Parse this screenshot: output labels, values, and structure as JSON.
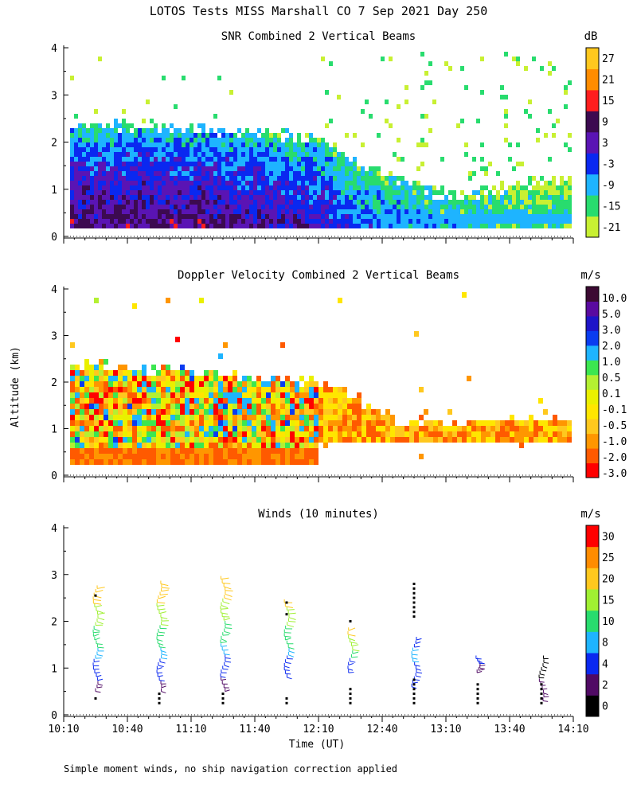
{
  "figure": {
    "title": "LOTOS Tests MISS Marshall CO   7 Sep 2021 Day 250",
    "ylabel": "Altitude (km)",
    "xlabel": "Time (UT)",
    "footnote": "Simple moment winds, no ship navigation correction applied"
  },
  "colors": {
    "snr_palette": [
      "#c8f032",
      "#28dc6e",
      "#1eb4ff",
      "#0a28f0",
      "#5a14b4",
      "#3c0a50",
      "#ff1e1e",
      "#ff8c00",
      "#ffc81e"
    ],
    "vel_palette": [
      "#ff0000",
      "#ff5a00",
      "#ff9600",
      "#ffc81e",
      "#ffe600",
      "#eaf000",
      "#b4f032",
      "#3ce650",
      "#1eb4ff",
      "#0a3cf0",
      "#1e14c8",
      "#5a0aa0",
      "#3c0a32"
    ],
    "wind_palette": [
      "#000000",
      "#500a64",
      "#0a28f0",
      "#1eb4ff",
      "#28dc6e",
      "#a0f032",
      "#ffc81e",
      "#ff8c00",
      "#ff0000"
    ]
  },
  "chart_data": [
    {
      "type": "heatmap",
      "title": "SNR Combined 2 Vertical Beams",
      "unit": "dB",
      "x_ticks": [
        "10:10",
        "10:40",
        "11:10",
        "11:40",
        "12:10",
        "12:40",
        "13:10",
        "13:40",
        "14:10"
      ],
      "xlim_minutes": [
        0,
        240
      ],
      "ylim": [
        0,
        4
      ],
      "y_ticks": [
        "0",
        "1",
        "2",
        "3",
        "4"
      ],
      "colorbar_ticks": [
        "-21",
        "-15",
        "-9",
        "-3",
        "3",
        "9",
        "15",
        "21",
        "27"
      ],
      "colorbar_levels": [
        -21,
        -15,
        -9,
        -3,
        3,
        9,
        15,
        21,
        27
      ],
      "description_profile": [
        {
          "t": 0,
          "top_km": 2.6,
          "max_db": 9
        },
        {
          "t": 60,
          "top_km": 2.5,
          "max_db": 9
        },
        {
          "t": 120,
          "top_km": 2.3,
          "max_db": 3
        },
        {
          "t": 135,
          "top_km": 1.8,
          "max_db": -3
        },
        {
          "t": 180,
          "top_km": 1.0,
          "max_db": -9
        },
        {
          "t": 240,
          "top_km": 1.5,
          "max_db": -15
        }
      ]
    },
    {
      "type": "heatmap",
      "title": "Doppler Velocity Combined 2 Vertical Beams",
      "unit": "m/s",
      "x_ticks": [
        "10:10",
        "10:40",
        "11:10",
        "11:40",
        "12:10",
        "12:40",
        "13:10",
        "13:40",
        "14:10"
      ],
      "xlim_minutes": [
        0,
        240
      ],
      "ylim": [
        0,
        4
      ],
      "y_ticks": [
        "0",
        "1",
        "2",
        "3",
        "4"
      ],
      "colorbar_ticks": [
        "-3.0",
        "-2.0",
        "-1.0",
        "-0.5",
        "-0.1",
        "0.1",
        "0.5",
        "1.0",
        "2.0",
        "3.0",
        "5.0",
        "10.0"
      ],
      "colorbar_levels": [
        -3.0,
        -2.0,
        -1.0,
        -0.5,
        -0.1,
        0.1,
        0.5,
        1.0,
        2.0,
        3.0,
        5.0,
        10.0
      ],
      "description_profile": [
        {
          "t": 0,
          "top_km": 2.6
        },
        {
          "t": 120,
          "top_km": 2.2
        },
        {
          "t": 160,
          "top_km": 1.3
        },
        {
          "t": 240,
          "top_km": 1.5
        }
      ]
    },
    {
      "type": "scatter",
      "title": "Winds (10 minutes)",
      "unit": "m/s",
      "x_ticks": [
        "10:10",
        "10:40",
        "11:10",
        "11:40",
        "12:10",
        "12:40",
        "13:10",
        "13:40",
        "14:10"
      ],
      "xlim_minutes": [
        0,
        240
      ],
      "ylim": [
        0,
        4
      ],
      "y_ticks": [
        "0",
        "1",
        "2",
        "3",
        "4"
      ],
      "colorbar_ticks": [
        "0",
        "2",
        "4",
        "8",
        "10",
        "15",
        "20",
        "25",
        "30"
      ],
      "colorbar_levels": [
        0,
        2,
        4,
        8,
        10,
        15,
        20,
        25,
        30
      ],
      "profiles": [
        {
          "t": 15,
          "alt_min": 0.5,
          "alt_max": 2.7,
          "speeds": [
            3,
            4,
            6,
            8,
            10,
            12,
            15,
            18,
            20,
            20
          ]
        },
        {
          "t": 45,
          "alt_min": 0.5,
          "alt_max": 2.8,
          "speeds": [
            3,
            4,
            6,
            8,
            10,
            12,
            15,
            18,
            20,
            20
          ]
        },
        {
          "t": 75,
          "alt_min": 0.5,
          "alt_max": 2.9,
          "speeds": [
            3,
            4,
            6,
            8,
            10,
            12,
            15,
            18,
            20,
            22
          ]
        },
        {
          "t": 105,
          "alt_min": 0.8,
          "alt_max": 2.4,
          "speeds": [
            4,
            6,
            8,
            10,
            12,
            15,
            18,
            20
          ]
        },
        {
          "t": 135,
          "alt_min": 0.9,
          "alt_max": 1.8,
          "speeds": [
            4,
            6,
            10,
            15,
            18,
            20
          ]
        },
        {
          "t": 165,
          "alt_min": 0.6,
          "alt_max": 1.6,
          "speeds": [
            4,
            6,
            8,
            5
          ]
        },
        {
          "t": 195,
          "alt_min": 0.9,
          "alt_max": 1.2,
          "speeds": [
            3,
            4
          ]
        },
        {
          "t": 225,
          "alt_min": 0.3,
          "alt_max": 1.2,
          "speeds": [
            2,
            1
          ]
        }
      ],
      "missing_markers": [
        {
          "t": 15,
          "alts": [
            0.35,
            2.55
          ]
        },
        {
          "t": 45,
          "alts": [
            0.25,
            0.35,
            0.45
          ]
        },
        {
          "t": 75,
          "alts": [
            0.25,
            0.35,
            0.45
          ]
        },
        {
          "t": 105,
          "alts": [
            0.25,
            0.35,
            2.15,
            2.4
          ]
        },
        {
          "t": 135,
          "alts": [
            0.25,
            0.35,
            0.45,
            0.55,
            2.0
          ]
        },
        {
          "t": 165,
          "alts": [
            0.25,
            0.35,
            0.45,
            0.55,
            0.65,
            0.75,
            2.1,
            2.2,
            2.3,
            2.4,
            2.5,
            2.6,
            2.7,
            2.8
          ]
        },
        {
          "t": 195,
          "alts": [
            0.25,
            0.35,
            0.45,
            0.55,
            0.65
          ]
        },
        {
          "t": 225,
          "alts": [
            0.25,
            0.35,
            0.45,
            0.55,
            0.65
          ]
        }
      ]
    }
  ]
}
